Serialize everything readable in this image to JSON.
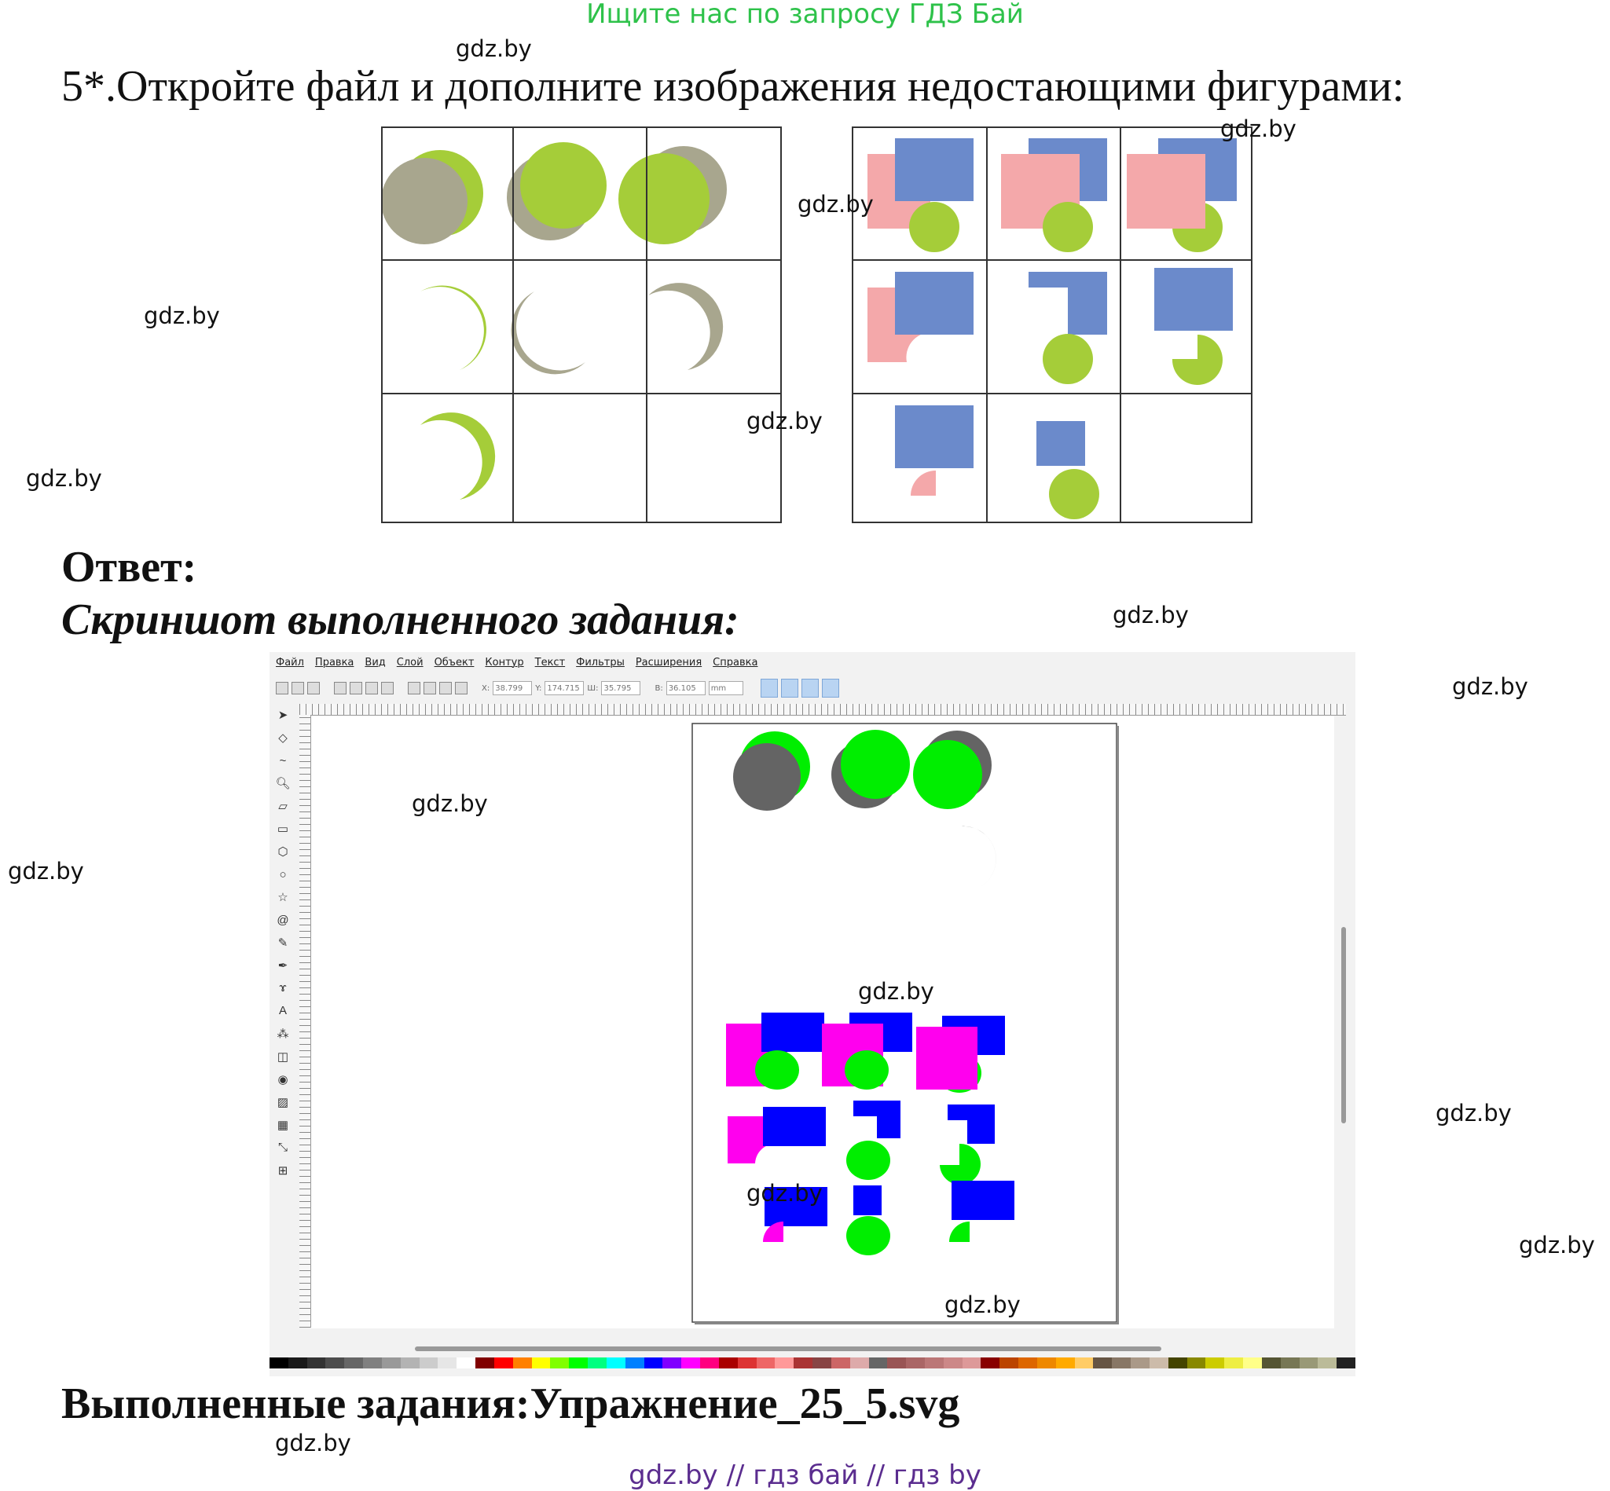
{
  "banner": "Ищите нас по запросу ГДЗ Бай",
  "task_text": "5*.Откройте файл и дополните изображения недостающими фигурами:",
  "answer_label": "Ответ:",
  "screenshot_label": "Скриншот выполненного задания:",
  "done_label": "Выполненные задания:Упражнение_25_5.svg",
  "footer": "gdz.by  //  гдз бай  //  гдз by",
  "watermark": "gdz.by",
  "colors": {
    "lime": "#a5cd39",
    "khaki": "#a8a68e",
    "pink": "#f4a8aa",
    "slate": "#6b8acb",
    "green": "#00ee00",
    "gray": "#646464",
    "magenta": "#ff00ee",
    "blue": "#0000ff"
  },
  "inkscape": {
    "menu": [
      "Файл",
      "Правка",
      "Вид",
      "Слой",
      "Объект",
      "Контур",
      "Текст",
      "Фильтры",
      "Расширения",
      "Справка"
    ],
    "fields": [
      {
        "label": "X:",
        "value": "38.799"
      },
      {
        "label": "Y:",
        "value": "174.715"
      },
      {
        "label": "Ш:",
        "value": "35.795"
      },
      {
        "label": "В:",
        "value": "36.105"
      }
    ],
    "unit": "mm"
  }
}
